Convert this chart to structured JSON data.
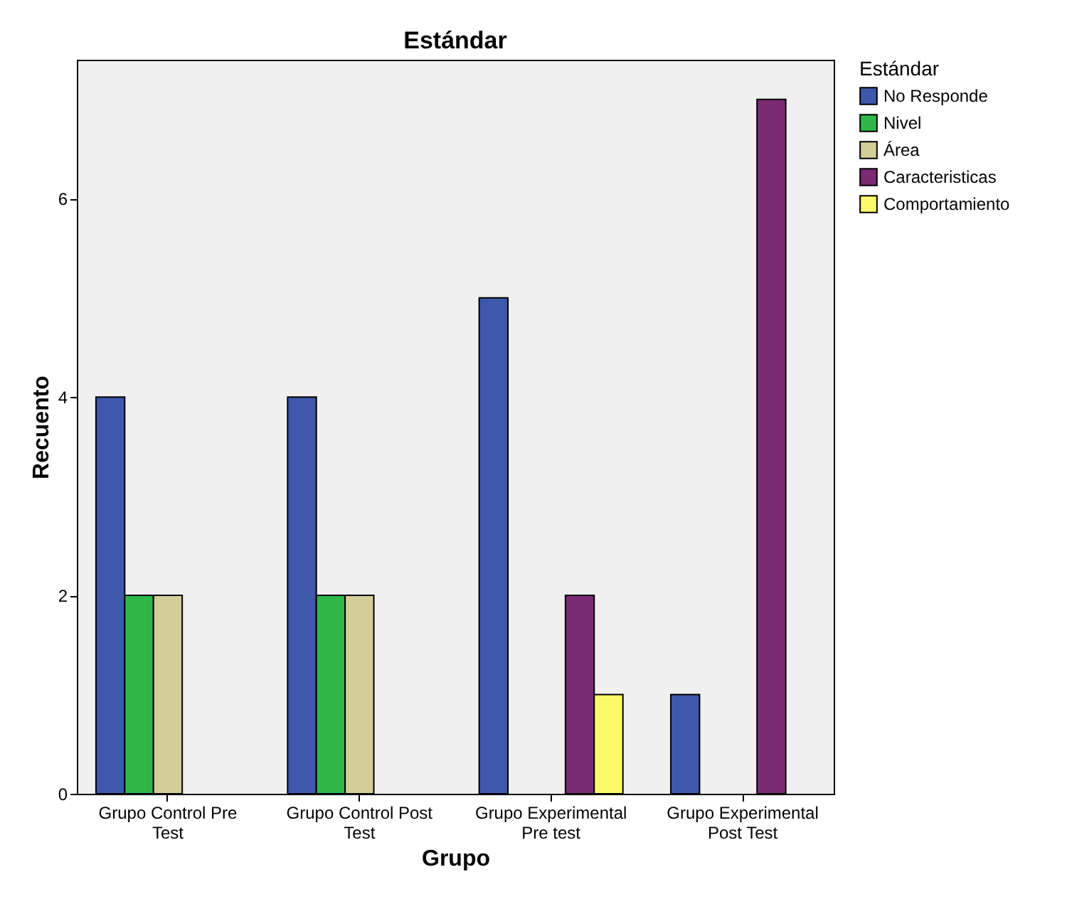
{
  "chart_data": {
    "type": "bar",
    "title": "Estándar",
    "xlabel": "Grupo",
    "ylabel": "Recuento",
    "legend_title": "Estándar",
    "legend": "right",
    "grid": false,
    "categories": [
      "Grupo Control Pre Test",
      "Grupo Control Post Test",
      "Grupo Experimental Pre test",
      "Grupo Experimental Post Test"
    ],
    "series": [
      {
        "name": "No Responde",
        "color": "#3e58ac",
        "values": [
          4,
          4,
          5,
          1
        ]
      },
      {
        "name": "Nivel",
        "color": "#2eb848",
        "values": [
          2,
          2,
          null,
          null
        ]
      },
      {
        "name": "Área",
        "color": "#d3ce97",
        "values": [
          2,
          2,
          null,
          null
        ]
      },
      {
        "name": "Caracteristicas",
        "color": "#7b2a74",
        "values": [
          null,
          null,
          2,
          7
        ]
      },
      {
        "name": "Comportamiento",
        "color": "#fbf869",
        "values": [
          null,
          null,
          1,
          null
        ]
      }
    ],
    "ylim": [
      0,
      7.4
    ],
    "yticks": [
      0,
      2,
      4,
      6
    ]
  }
}
